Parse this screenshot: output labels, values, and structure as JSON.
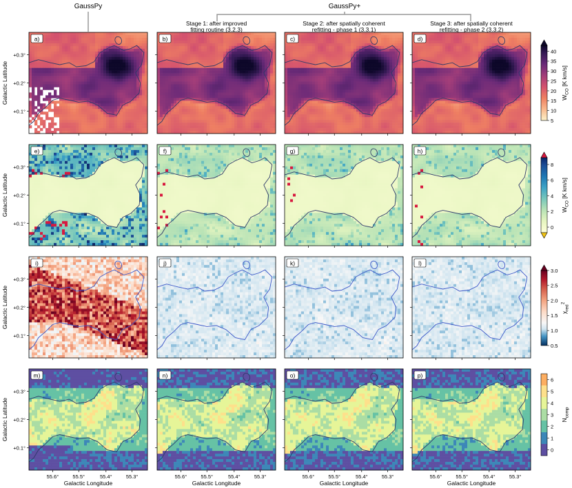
{
  "header": {
    "gausspy": "GaussPy",
    "gausspyplus": "GaussPy+"
  },
  "columns": [
    {
      "line1": "",
      "line2": ""
    },
    {
      "line1": "Stage 1: after improved",
      "line2": "fitting routine (3.2.3)"
    },
    {
      "line1": "Stage 2: after spatially coherent",
      "line2": "refitting - phase 1 (3.3.1)"
    },
    {
      "line1": "Stage 3: after spatially coherent",
      "line2": "refitting - phase 2 (3.3.2)"
    }
  ],
  "panel_labels": [
    "a)",
    "b)",
    "c)",
    "d)",
    "e)",
    "f)",
    "g)",
    "h)",
    "i)",
    "j)",
    "k)",
    "l)",
    "m)",
    "n)",
    "o)",
    "p)"
  ],
  "axes": {
    "ylabel": "Galactic Latitude",
    "xlabel": "Galactic Longitude",
    "yticks": [
      "+0.3°",
      "+0.2°",
      "+0.1°"
    ],
    "xticks": [
      "55.6°",
      "55.5°",
      "55.4°",
      "55.3°"
    ]
  },
  "colorbars": [
    {
      "label": "W",
      "sub": "CO",
      "unit": " [K km/s]",
      "ticks": [
        "40",
        "35",
        "30",
        "25",
        "20",
        "15",
        "10",
        "5"
      ],
      "extend": "max",
      "colors": [
        "#fdf2c9",
        "#f9b98e",
        "#ef8062",
        "#d4526e",
        "#a23d79",
        "#6a2a78",
        "#351a55",
        "#0d0729"
      ]
    },
    {
      "label": "W",
      "sub": "CO",
      "unit": " [K km/s]",
      "ticks": [
        "8",
        "6",
        "4",
        "2",
        "0"
      ],
      "extend": "both",
      "colors": [
        "#ffffd9",
        "#e6f5c0",
        "#b9e3b6",
        "#79c8bb",
        "#3fa4c6",
        "#1f78b4",
        "#1d4d96",
        "#0b2669"
      ]
    },
    {
      "label": "χ",
      "sub": "red",
      "unit": "2",
      "ticks": [
        "3.0",
        "2.5",
        "2.0",
        "1.5",
        "1.0",
        "0.5"
      ],
      "extend": "max",
      "colors": [
        "#053061",
        "#4393c3",
        "#d1e5f0",
        "#f7f7f7",
        "#fddbc7",
        "#f4a582",
        "#d6604d",
        "#b2182b",
        "#67001f"
      ]
    },
    {
      "label": "N",
      "sub": "comp",
      "unit": "",
      "ticks": [
        "6",
        "5",
        "4",
        "3",
        "2",
        "1",
        "0"
      ],
      "extend": "none",
      "colors": [
        "#5e4fa2",
        "#3d87b8",
        "#66c2a5",
        "#abdda4",
        "#e6f598",
        "#fee08b",
        "#fdae61",
        "#d53e4f"
      ]
    }
  ]
}
